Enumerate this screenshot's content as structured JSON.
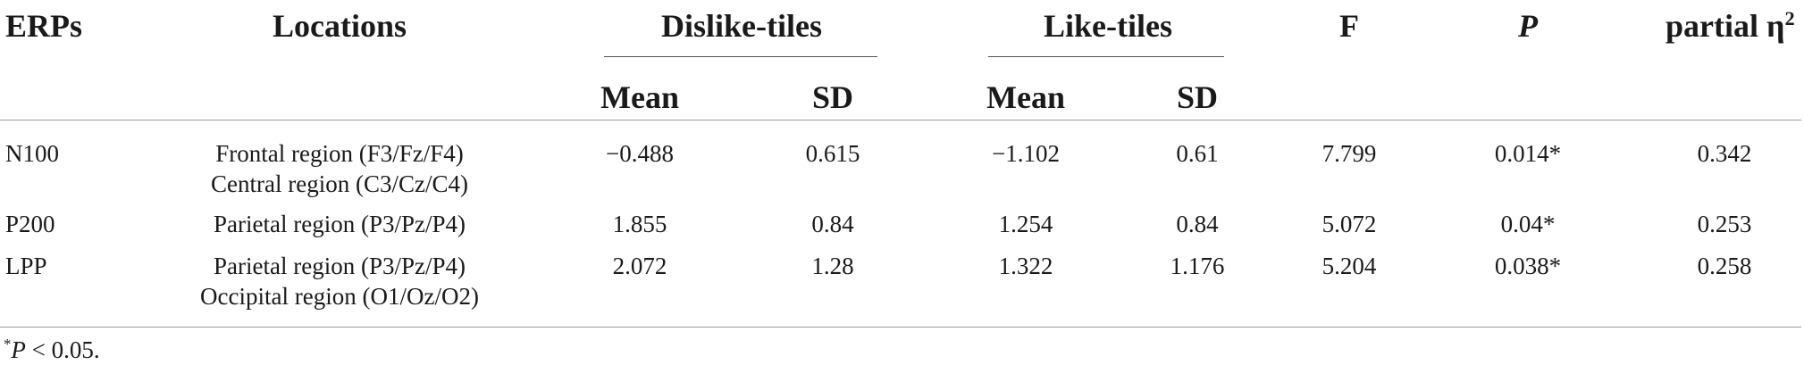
{
  "table": {
    "headers": {
      "erps": "ERPs",
      "locations": "Locations",
      "dislike_group": "Dislike-tiles",
      "like_group": "Like-tiles",
      "f": "F",
      "p": "P",
      "eta": "partial η",
      "eta_sup": "2",
      "dislike_mean": "Mean",
      "dislike_sd": "SD",
      "like_mean": "Mean",
      "like_sd": "SD"
    },
    "rows": [
      {
        "erp": "N100",
        "locations": [
          "Frontal region (F3/Fz/F4)",
          "Central region (C3/Cz/C4)"
        ],
        "dislike_mean": "−0.488",
        "dislike_sd": "0.615",
        "like_mean": "−1.102",
        "like_sd": "0.61",
        "f": "7.799",
        "p": "0.014*",
        "eta": "0.342"
      },
      {
        "erp": "P200",
        "locations": [
          "Parietal region (P3/Pz/P4)"
        ],
        "dislike_mean": "1.855",
        "dislike_sd": "0.84",
        "like_mean": "1.254",
        "like_sd": "0.84",
        "f": "5.072",
        "p": "0.04*",
        "eta": "0.253"
      },
      {
        "erp": "LPP",
        "locations": [
          "Parietal region (P3/Pz/P4)",
          "Occipital region (O1/Oz/O2)"
        ],
        "dislike_mean": "2.072",
        "dislike_sd": "1.28",
        "like_mean": "1.322",
        "like_sd": "1.176",
        "f": "5.204",
        "p": "0.038*",
        "eta": "0.258"
      }
    ],
    "footnote": {
      "star": "*",
      "p": "P",
      "rest": " < 0.05."
    }
  }
}
